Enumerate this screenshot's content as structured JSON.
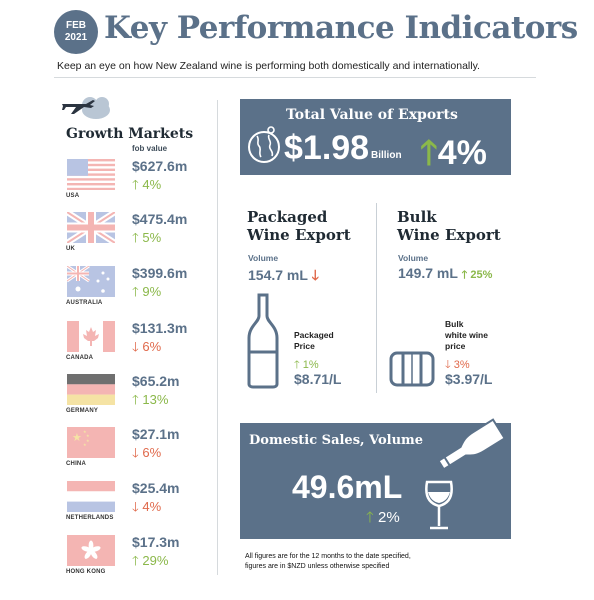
{
  "header": {
    "badge_month": "FEB",
    "badge_year": "2021",
    "title": "Key Performance Indicators",
    "subtitle": "Keep an eye on how New Zealand wine is performing both domestically and internationally."
  },
  "growth_markets": {
    "title": "Growth Markets",
    "subtitle": "fob value",
    "markets": [
      {
        "country": "USA",
        "value": "$627.6m",
        "change": "4%",
        "direction": "up"
      },
      {
        "country": "UK",
        "value": "$475.4m",
        "change": "5%",
        "direction": "up"
      },
      {
        "country": "AUSTRALIA",
        "value": "$399.6m",
        "change": "9%",
        "direction": "up"
      },
      {
        "country": "CANADA",
        "value": "$131.3m",
        "change": "6%",
        "direction": "down"
      },
      {
        "country": "GERMANY",
        "value": "$65.2m",
        "change": "13%",
        "direction": "up"
      },
      {
        "country": "CHINA",
        "value": "$27.1m",
        "change": "6%",
        "direction": "down"
      },
      {
        "country": "NETHERLANDS",
        "value": "$25.4m",
        "change": "4%",
        "direction": "down"
      },
      {
        "country": "HONG KONG",
        "value": "$17.3m",
        "change": "29%",
        "direction": "up"
      }
    ]
  },
  "exports": {
    "title": "Total Value of Exports",
    "value": "$1.98",
    "unit": "Billion",
    "change": "4%",
    "direction": "up"
  },
  "packaged": {
    "title_line1": "Packaged",
    "title_line2": "Wine Export",
    "volume_label": "Volume",
    "volume_value": "154.7 mL",
    "volume_direction": "down",
    "price_label_line1": "Packaged",
    "price_label_line2": "Price",
    "price_change": "1%",
    "price_direction": "up",
    "price_value": "$8.71/L"
  },
  "bulk": {
    "title_line1": "Bulk",
    "title_line2": "Wine Export",
    "volume_label": "Volume",
    "volume_value": "149.7 mL",
    "volume_change": "25%",
    "volume_direction": "up",
    "price_label_line1": "Bulk",
    "price_label_line2": "white wine",
    "price_label_line3": "price",
    "price_change": "3%",
    "price_direction": "down",
    "price_value": "$3.97/L"
  },
  "domestic": {
    "title": "Domestic Sales, Volume",
    "value": "49.6mL",
    "change": "2%",
    "direction": "up"
  },
  "footnote": {
    "line1": "All figures are for the 12 months to the date specified,",
    "line2": "figures are in $NZD unless otherwise specified"
  },
  "colors": {
    "accent": "#5b7189",
    "up": "#8bb84a",
    "down": "#e0694b",
    "divider": "#d6dadd"
  },
  "icons": [
    "airplane-cloud-icon",
    "globe-icon",
    "wine-bottle-icon",
    "wine-barrel-icon",
    "pouring-bottle-icon",
    "wine-glass-icon"
  ]
}
